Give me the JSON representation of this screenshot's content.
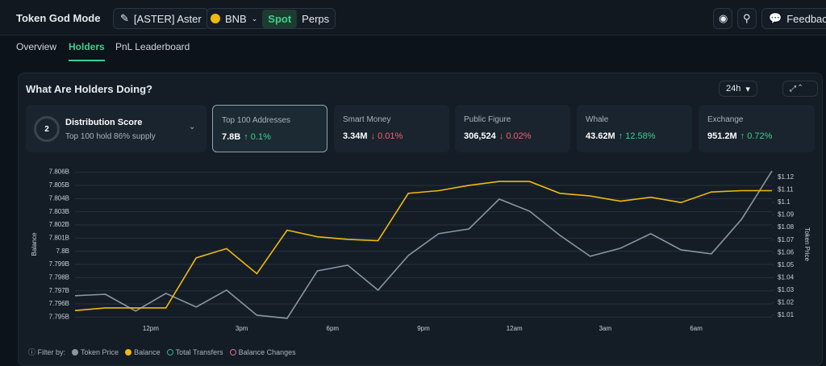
{
  "header": {
    "title": "Token God Mode",
    "token": "[ASTER] Aster",
    "chain": "BNB",
    "modes": [
      "Spot",
      "Perps"
    ],
    "feedback": "Feedback"
  },
  "tabs": [
    "Overview",
    "Holders",
    "PnL Leaderboard"
  ],
  "section": {
    "title": "What Are Holders Doing?",
    "period": "24h"
  },
  "distribution": {
    "label": "Distribution Score",
    "score": "2",
    "note": "Top 100 hold 86% supply"
  },
  "cards": [
    {
      "label": "Top 100 Addresses",
      "value": "7.8B",
      "change": "↑ 0.1%",
      "color": "#3ecf8e"
    },
    {
      "label": "Smart Money",
      "value": "3.34M",
      "change": "↓ 0.01%",
      "color": "#f0616d"
    },
    {
      "label": "Public Figure",
      "value": "306,524",
      "change": "↓ 0.02%",
      "color": "#f0616d"
    },
    {
      "label": "Whale",
      "value": "43.62M",
      "change": "↑ 12.58%",
      "color": "#3ecf8e"
    },
    {
      "label": "Exchange",
      "value": "951.2M",
      "change": "↑ 0.72%",
      "color": "#3ecf8e"
    }
  ],
  "chart_data": {
    "type": "line",
    "ylabel": "Balance",
    "y2label": "Token Price",
    "categories": [
      null,
      null,
      null,
      "12pm",
      null,
      null,
      "3pm",
      null,
      null,
      "6pm",
      null,
      null,
      "9pm",
      null,
      null,
      "12am",
      null,
      null,
      "3am",
      null,
      null,
      "6am",
      null,
      null
    ],
    "series": [
      {
        "name": "Token Price",
        "color": "#8a95a1",
        "axis": "y2",
        "values": [
          1.0255,
          1.0267,
          1.0133,
          1.0274,
          1.0165,
          1.03,
          1.01,
          1.0075,
          1.0454,
          1.0499,
          1.03,
          1.0576,
          1.075,
          1.0788,
          1.1026,
          1.093,
          1.0737,
          1.057,
          1.0634,
          1.075,
          1.0621,
          1.0589,
          1.0866,
          1.125
        ]
      },
      {
        "name": "Balance",
        "color": "#f0b90b",
        "values": [
          7.7955,
          7.7957,
          7.7957,
          7.7957,
          7.7995,
          7.8002,
          7.7983,
          7.8016,
          7.8011,
          7.8009,
          7.8008,
          7.8044,
          7.8046,
          7.805,
          7.8053,
          7.8053,
          7.8044,
          7.8042,
          7.8038,
          7.8041,
          7.8037,
          7.8045,
          7.8046,
          7.8046
        ]
      }
    ],
    "extra_filters": [
      {
        "name": "Total Transfers",
        "color": "#2bb3a3"
      },
      {
        "name": "Balance Changes",
        "color": "#e0708a"
      }
    ],
    "filter_label": "Filter by:",
    "ylim": [
      7.7949,
      7.8061
    ],
    "yticks": [
      {
        "value": 7.806,
        "label": "7.806B"
      },
      {
        "value": 7.805,
        "label": "7.805B"
      },
      {
        "value": 7.804,
        "label": "7.804B"
      },
      {
        "value": 7.803,
        "label": "7.803B"
      },
      {
        "value": 7.802,
        "label": "7.802B"
      },
      {
        "value": 7.801,
        "label": "7.801B"
      },
      {
        "value": 7.8,
        "label": "7.8B"
      },
      {
        "value": 7.799,
        "label": "7.799B"
      },
      {
        "value": 7.798,
        "label": "7.798B"
      },
      {
        "value": 7.797,
        "label": "7.797B"
      },
      {
        "value": 7.796,
        "label": "7.796B"
      },
      {
        "value": 7.795,
        "label": "7.795B"
      }
    ],
    "y2lim": [
      1.0074,
      1.1251
    ],
    "y2ticks": [
      {
        "value": 1.12,
        "label": "$1.12"
      },
      {
        "value": 1.11,
        "label": "$1.11"
      },
      {
        "value": 1.1,
        "label": "$1.1"
      },
      {
        "value": 1.09,
        "label": "$1.09"
      },
      {
        "value": 1.08,
        "label": "$1.08"
      },
      {
        "value": 1.07,
        "label": "$1.07"
      },
      {
        "value": 1.06,
        "label": "$1.06"
      },
      {
        "value": 1.05,
        "label": "$1.05"
      },
      {
        "value": 1.04,
        "label": "$1.04"
      },
      {
        "value": 1.03,
        "label": "$1.03"
      },
      {
        "value": 1.02,
        "label": "$1.02"
      },
      {
        "value": 1.01,
        "label": "$1.01"
      }
    ],
    "grid": true
  }
}
